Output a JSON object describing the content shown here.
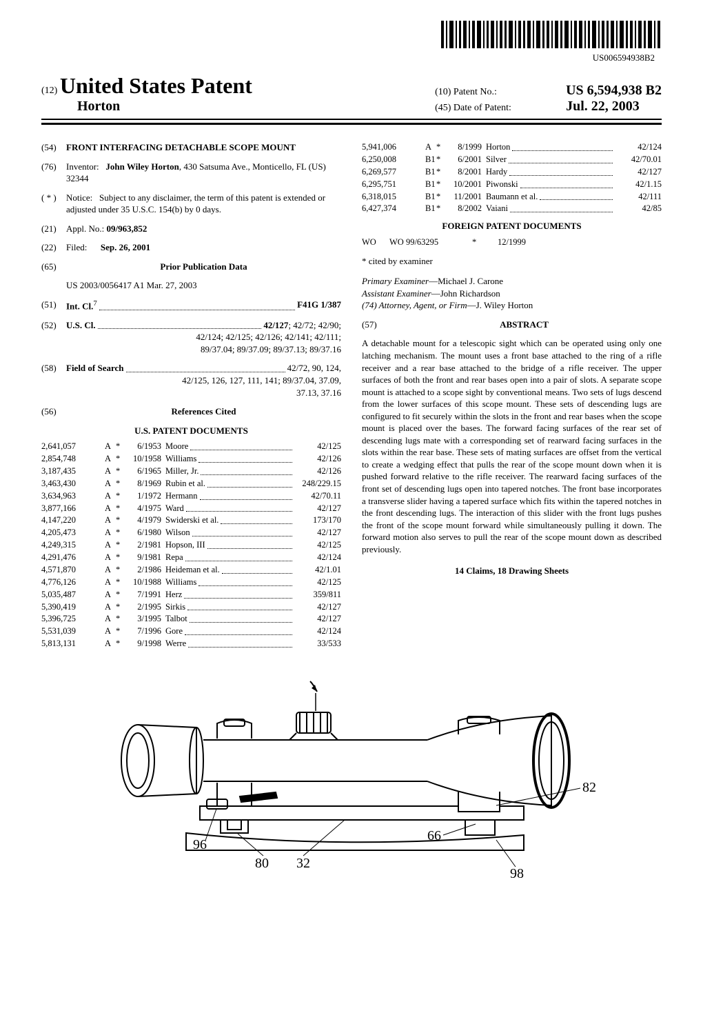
{
  "barcode_number": "US006594938B2",
  "header": {
    "doc_code": "(12)",
    "country_doc": "United States Patent",
    "inventor_surname": "Horton",
    "patent_no_label": "(10) Patent No.:",
    "patent_no": "US 6,594,938 B2",
    "date_label": "(45) Date of Patent:",
    "date": "Jul. 22, 2003"
  },
  "fields": {
    "f54_num": "(54)",
    "f54_title": "FRONT INTERFACING DETACHABLE SCOPE MOUNT",
    "f76_num": "(76)",
    "f76_label": "Inventor:",
    "f76_name": "John Wiley Horton",
    "f76_addr": ", 430 Satsuma Ave., Monticello, FL (US) 32344",
    "fstar_num": "( * )",
    "fstar_label": "Notice:",
    "fstar_text": "Subject to any disclaimer, the term of this patent is extended or adjusted under 35 U.S.C. 154(b) by 0 days.",
    "f21_num": "(21)",
    "f21_label": "Appl. No.:",
    "f21_val": "09/963,852",
    "f22_num": "(22)",
    "f22_label": "Filed:",
    "f22_val": "Sep. 26, 2001",
    "f65_num": "(65)",
    "f65_label": "Prior Publication Data",
    "f65_val": "US 2003/0056417 A1 Mar. 27, 2003",
    "f51_num": "(51)",
    "f51_label": "Int. Cl.",
    "f51_sup": "7",
    "f51_val": "F41G 1/387",
    "f52_num": "(52)",
    "f52_label": "U.S. Cl.",
    "f52_val_bold": "42/127",
    "f52_val_rest": "; 42/72; 42/90; 42/124; 42/125; 42/126; 42/141; 42/111; 89/37.04; 89/37.09; 89/37.13; 89/37.16",
    "f58_num": "(58)",
    "f58_label": "Field of Search",
    "f58_val": "42/72, 90, 124, 42/125, 126, 127, 111, 141; 89/37.04, 37.09, 37.13, 37.16",
    "f56_num": "(56)",
    "f56_label": "References Cited"
  },
  "us_patents_heading": "U.S. PATENT DOCUMENTS",
  "us_patents": [
    {
      "pn": "2,641,057",
      "k": "A",
      "s": "*",
      "d": "6/1953",
      "i": "Moore",
      "c": "42/125"
    },
    {
      "pn": "2,854,748",
      "k": "A",
      "s": "*",
      "d": "10/1958",
      "i": "Williams",
      "c": "42/126"
    },
    {
      "pn": "3,187,435",
      "k": "A",
      "s": "*",
      "d": "6/1965",
      "i": "Miller, Jr.",
      "c": "42/126"
    },
    {
      "pn": "3,463,430",
      "k": "A",
      "s": "*",
      "d": "8/1969",
      "i": "Rubin et al.",
      "c": "248/229.15"
    },
    {
      "pn": "3,634,963",
      "k": "A",
      "s": "*",
      "d": "1/1972",
      "i": "Hermann",
      "c": "42/70.11"
    },
    {
      "pn": "3,877,166",
      "k": "A",
      "s": "*",
      "d": "4/1975",
      "i": "Ward",
      "c": "42/127"
    },
    {
      "pn": "4,147,220",
      "k": "A",
      "s": "*",
      "d": "4/1979",
      "i": "Swiderski et al.",
      "c": "173/170"
    },
    {
      "pn": "4,205,473",
      "k": "A",
      "s": "*",
      "d": "6/1980",
      "i": "Wilson",
      "c": "42/127"
    },
    {
      "pn": "4,249,315",
      "k": "A",
      "s": "*",
      "d": "2/1981",
      "i": "Hopson, III",
      "c": "42/125"
    },
    {
      "pn": "4,291,476",
      "k": "A",
      "s": "*",
      "d": "9/1981",
      "i": "Repa",
      "c": "42/124"
    },
    {
      "pn": "4,571,870",
      "k": "A",
      "s": "*",
      "d": "2/1986",
      "i": "Heideman et al.",
      "c": "42/1.01"
    },
    {
      "pn": "4,776,126",
      "k": "A",
      "s": "*",
      "d": "10/1988",
      "i": "Williams",
      "c": "42/125"
    },
    {
      "pn": "5,035,487",
      "k": "A",
      "s": "*",
      "d": "7/1991",
      "i": "Herz",
      "c": "359/811"
    },
    {
      "pn": "5,390,419",
      "k": "A",
      "s": "*",
      "d": "2/1995",
      "i": "Sirkis",
      "c": "42/127"
    },
    {
      "pn": "5,396,725",
      "k": "A",
      "s": "*",
      "d": "3/1995",
      "i": "Talbot",
      "c": "42/127"
    },
    {
      "pn": "5,531,039",
      "k": "A",
      "s": "*",
      "d": "7/1996",
      "i": "Gore",
      "c": "42/124"
    },
    {
      "pn": "5,813,131",
      "k": "A",
      "s": "*",
      "d": "9/1998",
      "i": "Werre",
      "c": "33/533"
    }
  ],
  "us_patents2": [
    {
      "pn": "5,941,006",
      "k": "A",
      "s": "*",
      "d": "8/1999",
      "i": "Horton",
      "c": "42/124"
    },
    {
      "pn": "6,250,008",
      "k": "B1",
      "s": "*",
      "d": "6/2001",
      "i": "Silver",
      "c": "42/70.01"
    },
    {
      "pn": "6,269,577",
      "k": "B1",
      "s": "*",
      "d": "8/2001",
      "i": "Hardy",
      "c": "42/127"
    },
    {
      "pn": "6,295,751",
      "k": "B1",
      "s": "*",
      "d": "10/2001",
      "i": "Piwonski",
      "c": "42/1.15"
    },
    {
      "pn": "6,318,015",
      "k": "B1",
      "s": "*",
      "d": "11/2001",
      "i": "Baumann et al.",
      "c": "42/111"
    },
    {
      "pn": "6,427,374",
      "k": "B1",
      "s": "*",
      "d": "8/2002",
      "i": "Vaiani",
      "c": "42/85"
    }
  ],
  "foreign_heading": "FOREIGN PATENT DOCUMENTS",
  "foreign": [
    {
      "cc": "WO",
      "pn": "WO 99/63295",
      "s": "*",
      "d": "12/1999"
    }
  ],
  "cited_note": "* cited by examiner",
  "examiner": {
    "primary_label": "Primary Examiner",
    "primary": "—Michael J. Carone",
    "assistant_label": "Assistant Examiner",
    "assistant": "—John Richardson",
    "attorney_label": "(74) Attorney, Agent, or Firm",
    "attorney": "—J. Wiley Horton"
  },
  "abstract_num": "(57)",
  "abstract_label": "ABSTRACT",
  "abstract_text": "A detachable mount for a telescopic sight which can be operated using only one latching mechanism. The mount uses a front base attached to the ring of a rifle receiver and a rear base attached to the bridge of a rifle receiver. The upper surfaces of both the front and rear bases open into a pair of slots. A separate scope mount is attached to a scope sight by conventional means. Two sets of lugs descend from the lower surfaces of this scope mount. These sets of descending lugs are configured to fit securely within the slots in the front and rear bases when the scope mount is placed over the bases. The forward facing surfaces of the rear set of descending lugs mate with a corresponding set of rearward facing surfaces in the slots within the rear base. These sets of mating surfaces are offset from the vertical to create a wedging effect that pulls the rear of the scope mount down when it is pushed forward relative to the rifle receiver. The rearward facing surfaces of the front set of descending lugs open into tapered notches. The front base incorporates a transverse slider having a tapered surface which fits within the tapered notches in the front descending lugs. The interaction of this slider with the front lugs pushes the front of the scope mount forward while simultaneously pulling it down. The forward motion also serves to pull the rear of the scope mount down as described previously.",
  "claims_line": "14 Claims, 18 Drawing Sheets",
  "figure": {
    "callouts": [
      "96",
      "80",
      "32",
      "66",
      "82",
      "98"
    ]
  }
}
